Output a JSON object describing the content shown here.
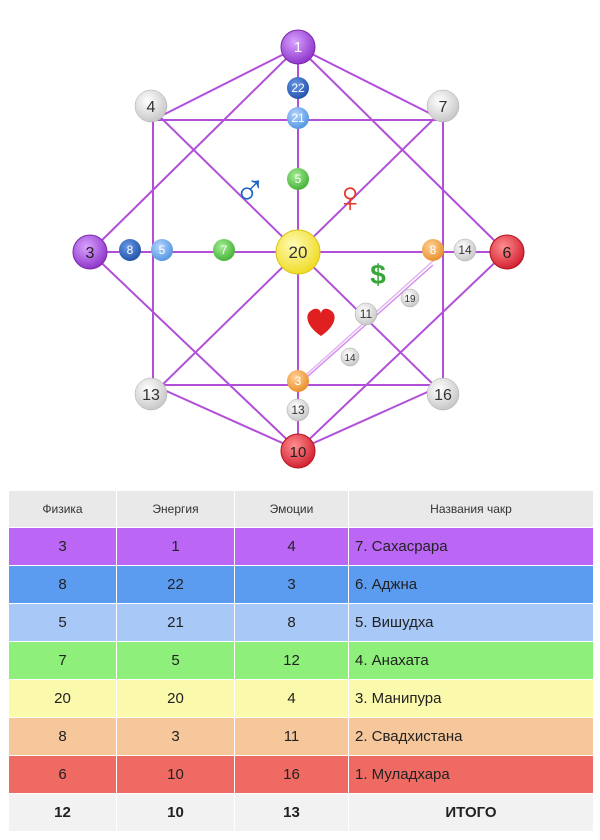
{
  "diagram": {
    "nodes": {
      "top": "1",
      "top_inner_22": "22",
      "top_inner_21": "21",
      "top_inner_5": "5",
      "center": "20",
      "left": "3",
      "left_inner_8": "8",
      "left_inner_5": "5",
      "left_inner_7": "7",
      "right": "6",
      "right_inner_14": "14",
      "right_inner_8": "8",
      "bottom": "10",
      "bottom_inner_13": "13",
      "bottom_inner_3": "3",
      "corner_tl": "4",
      "corner_tr": "7",
      "corner_bl": "13",
      "corner_br": "16",
      "money_line_11": "11",
      "money_line_19": "19",
      "love_line_14": "14"
    },
    "symbols": {
      "male": "♂",
      "female": "♀",
      "dollar": "$",
      "heart": "heart"
    }
  },
  "table": {
    "headers": [
      "Физика",
      "Энергия",
      "Эмоции",
      "Названия чакр"
    ],
    "rows": [
      {
        "cells": [
          "3",
          "1",
          "4",
          "7. Сахасрара"
        ],
        "color": "#bb66f5"
      },
      {
        "cells": [
          "8",
          "22",
          "3",
          "6. Аджна"
        ],
        "color": "#5b9cf0"
      },
      {
        "cells": [
          "5",
          "21",
          "8",
          "5. Вишудха"
        ],
        "color": "#a8c8f8"
      },
      {
        "cells": [
          "7",
          "5",
          "12",
          "4. Анахата"
        ],
        "color": "#8ef07a"
      },
      {
        "cells": [
          "20",
          "20",
          "4",
          "3. Манипура"
        ],
        "color": "#fbf9ab"
      },
      {
        "cells": [
          "8",
          "3",
          "11",
          "2. Свадхистана"
        ],
        "color": "#f6c79b"
      },
      {
        "cells": [
          "6",
          "10",
          "16",
          "1. Муладхара"
        ],
        "color": "#ee6a62"
      }
    ],
    "total": [
      "12",
      "10",
      "13",
      "ИТОГО"
    ]
  },
  "colors": {
    "line": "#b14fd8",
    "purple": "#9a3fd0",
    "blue": "#2c5fb8",
    "light_blue": "#5fa2e6",
    "green": "#4fbf3f",
    "yellow": "#f3e536",
    "orange": "#f0a040",
    "red": "#e0283a",
    "grey": "#dcdcdc",
    "male": "#1e63c7",
    "female": "#e03a2a",
    "dollar": "#3aa63a",
    "heart": "#e02020"
  }
}
